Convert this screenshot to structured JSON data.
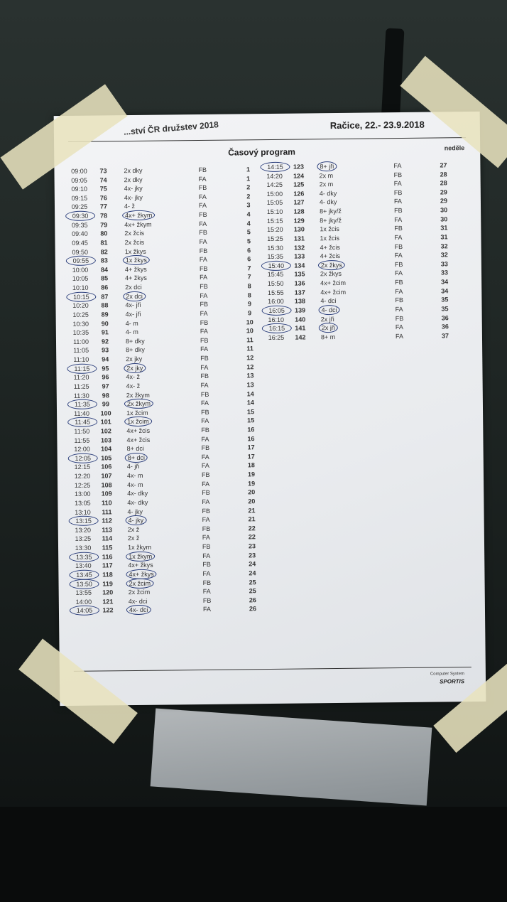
{
  "header": {
    "event": "...ství ČR družstev 2018",
    "place_date": "Račice, 22.- 23.9.2018"
  },
  "title": "Časový program",
  "day": "neděle",
  "footer": {
    "line1": "Computer System",
    "brand": "SPORTIS"
  },
  "columns_order": [
    "time",
    "race_no",
    "event",
    "lane",
    "heat"
  ],
  "left_rows": [
    [
      "09:00",
      "73",
      "2x dky",
      "FB",
      "1",
      false
    ],
    [
      "09:05",
      "74",
      "2x dky",
      "FA",
      "1",
      false
    ],
    [
      "09:10",
      "75",
      "4x- jky",
      "FB",
      "2",
      false
    ],
    [
      "09:15",
      "76",
      "4x- jky",
      "FA",
      "2",
      false
    ],
    [
      "09:25",
      "77",
      "4- ž",
      "FA",
      "3",
      false
    ],
    [
      "09:30",
      "78",
      "4x+ žkym",
      "FB",
      "4",
      true
    ],
    [
      "09:35",
      "79",
      "4x+ žkym",
      "FA",
      "4",
      false
    ],
    [
      "09:40",
      "80",
      "2x žcis",
      "FB",
      "5",
      false
    ],
    [
      "09:45",
      "81",
      "2x žcis",
      "FA",
      "5",
      false
    ],
    [
      "09:50",
      "82",
      "1x žkys",
      "FB",
      "6",
      false
    ],
    [
      "09:55",
      "83",
      "1x žkys",
      "FA",
      "6",
      true
    ],
    [
      "10:00",
      "84",
      "4+ žkys",
      "FB",
      "7",
      false
    ],
    [
      "10:05",
      "85",
      "4+ žkys",
      "FA",
      "7",
      false
    ],
    [
      "10:10",
      "86",
      "2x dci",
      "FB",
      "8",
      false
    ],
    [
      "10:15",
      "87",
      "2x dci",
      "FA",
      "8",
      true
    ],
    [
      "10:20",
      "88",
      "4x- jři",
      "FB",
      "9",
      false
    ],
    [
      "10:25",
      "89",
      "4x- jři",
      "FA",
      "9",
      false
    ],
    [
      "10:30",
      "90",
      "4- m",
      "FB",
      "10",
      false
    ],
    [
      "10:35",
      "91",
      "4- m",
      "FA",
      "10",
      false
    ],
    [
      "11:00",
      "92",
      "8+ dky",
      "FB",
      "11",
      false
    ],
    [
      "11:05",
      "93",
      "8+ dky",
      "FA",
      "11",
      false
    ],
    [
      "11:10",
      "94",
      "2x jky",
      "FB",
      "12",
      false
    ],
    [
      "11:15",
      "95",
      "2x jky",
      "FA",
      "12",
      true
    ],
    [
      "11:20",
      "96",
      "4x- ž",
      "FB",
      "13",
      false
    ],
    [
      "11:25",
      "97",
      "4x- ž",
      "FA",
      "13",
      false
    ],
    [
      "11:30",
      "98",
      "2x žkym",
      "FB",
      "14",
      false
    ],
    [
      "11:35",
      "99",
      "2x žkym",
      "FA",
      "14",
      true
    ],
    [
      "11:40",
      "100",
      "1x žcim",
      "FB",
      "15",
      false
    ],
    [
      "11:45",
      "101",
      "1x žcim",
      "FA",
      "15",
      true
    ],
    [
      "11:50",
      "102",
      "4x+ žcis",
      "FB",
      "16",
      false
    ],
    [
      "11:55",
      "103",
      "4x+ žcis",
      "FA",
      "16",
      false
    ],
    [
      "12:00",
      "104",
      "8+ dci",
      "FB",
      "17",
      false
    ],
    [
      "12:05",
      "105",
      "8+ dci",
      "FA",
      "17",
      true
    ],
    [
      "12:15",
      "106",
      "4- jři",
      "FA",
      "18",
      false
    ],
    [
      "12:20",
      "107",
      "4x- m",
      "FB",
      "19",
      false
    ],
    [
      "12:25",
      "108",
      "4x- m",
      "FA",
      "19",
      false
    ],
    [
      "13:00",
      "109",
      "4x- dky",
      "FB",
      "20",
      false
    ],
    [
      "13:05",
      "110",
      "4x- dky",
      "FA",
      "20",
      false
    ],
    [
      "13:10",
      "111",
      "4- jky",
      "FB",
      "21",
      false
    ],
    [
      "13:15",
      "112",
      "4- jky",
      "FA",
      "21",
      true
    ],
    [
      "13:20",
      "113",
      "2x ž",
      "FB",
      "22",
      false
    ],
    [
      "13:25",
      "114",
      "2x ž",
      "FA",
      "22",
      false
    ],
    [
      "13:30",
      "115",
      "1x žkym",
      "FB",
      "23",
      false
    ],
    [
      "13:35",
      "116",
      "1x žkym",
      "FA",
      "23",
      true
    ],
    [
      "13:40",
      "117",
      "4x+ žkys",
      "FB",
      "24",
      false
    ],
    [
      "13:45",
      "118",
      "4x+ žkys",
      "FA",
      "24",
      true
    ],
    [
      "13:50",
      "119",
      "2x žcim",
      "FB",
      "25",
      true
    ],
    [
      "13:55",
      "120",
      "2x žcim",
      "FA",
      "25",
      false
    ],
    [
      "14:00",
      "121",
      "4x- dci",
      "FB",
      "26",
      false
    ],
    [
      "14:05",
      "122",
      "4x- dci",
      "FA",
      "26",
      true
    ]
  ],
  "right_rows": [
    [
      "14:15",
      "123",
      "8+ jři",
      "FA",
      "27",
      true
    ],
    [
      "14:20",
      "124",
      "2x m",
      "FB",
      "28",
      false
    ],
    [
      "14:25",
      "125",
      "2x m",
      "FA",
      "28",
      false
    ],
    [
      "15:00",
      "126",
      "4- dky",
      "FB",
      "29",
      false
    ],
    [
      "15:05",
      "127",
      "4- dky",
      "FA",
      "29",
      false
    ],
    [
      "15:10",
      "128",
      "8+ jky/ž",
      "FB",
      "30",
      false
    ],
    [
      "15:15",
      "129",
      "8+ jky/ž",
      "FA",
      "30",
      false
    ],
    [
      "15:20",
      "130",
      "1x žcis",
      "FB",
      "31",
      false
    ],
    [
      "15:25",
      "131",
      "1x žcis",
      "FA",
      "31",
      false
    ],
    [
      "15:30",
      "132",
      "4+ žcis",
      "FB",
      "32",
      false
    ],
    [
      "15:35",
      "133",
      "4+ žcis",
      "FA",
      "32",
      false
    ],
    [
      "15:40",
      "134",
      "2x žkys",
      "FB",
      "33",
      true
    ],
    [
      "15:45",
      "135",
      "2x žkys",
      "FA",
      "33",
      false
    ],
    [
      "15:50",
      "136",
      "4x+ žcim",
      "FB",
      "34",
      false
    ],
    [
      "15:55",
      "137",
      "4x+ žcim",
      "FA",
      "34",
      false
    ],
    [
      "16:00",
      "138",
      "4- dci",
      "FB",
      "35",
      false
    ],
    [
      "16:05",
      "139",
      "4- dci",
      "FA",
      "35",
      true
    ],
    [
      "16:10",
      "140",
      "2x jři",
      "FB",
      "36",
      false
    ],
    [
      "16:15",
      "141",
      "2x jři",
      "FA",
      "36",
      true
    ],
    [
      "16:25",
      "142",
      "8+ m",
      "FA",
      "37",
      false
    ]
  ],
  "colors": {
    "paper": "#eceef1",
    "ink": "#333333",
    "pen_circle": "#2a3d7a",
    "tape": "#e8e2be"
  }
}
